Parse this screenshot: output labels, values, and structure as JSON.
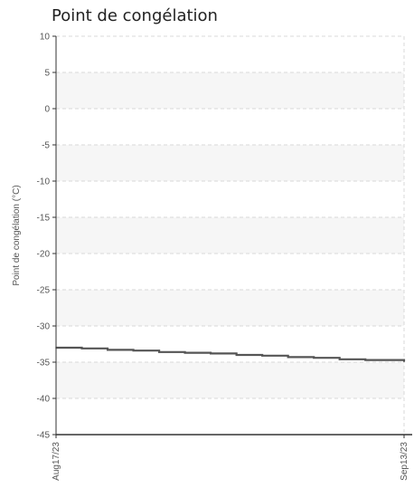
{
  "chart_data": {
    "type": "line",
    "title": "Point de congélation",
    "ylabel": "Point de congélation (°C)",
    "xlabel": "",
    "ylim": [
      -45,
      10
    ],
    "y_ticks": [
      10,
      5,
      0,
      -5,
      -10,
      -15,
      -20,
      -25,
      -30,
      -35,
      -40,
      -45
    ],
    "x_range": [
      "2023-08-17",
      "2023-09-13"
    ],
    "x_tick_labels": [
      "Aug17/23",
      "Sep13/23"
    ],
    "grid": true,
    "series": [
      {
        "x": [
          "2023-08-17",
          "2023-08-19",
          "2023-08-21",
          "2023-08-23",
          "2023-08-25",
          "2023-08-27",
          "2023-08-29",
          "2023-08-31",
          "2023-09-02",
          "2023-09-04",
          "2023-09-06",
          "2023-09-08",
          "2023-09-10",
          "2023-09-13"
        ],
        "values": [
          -33.0,
          -33.1,
          -33.3,
          -33.4,
          -33.6,
          -33.7,
          -33.8,
          -34.0,
          -34.1,
          -34.3,
          -34.4,
          -34.6,
          -34.7,
          -34.9
        ],
        "color": "#555555"
      }
    ],
    "colors": {
      "band": "#f6f6f6",
      "grid": "#d8d8d8",
      "axis": "#333333",
      "line": "#555555"
    }
  }
}
